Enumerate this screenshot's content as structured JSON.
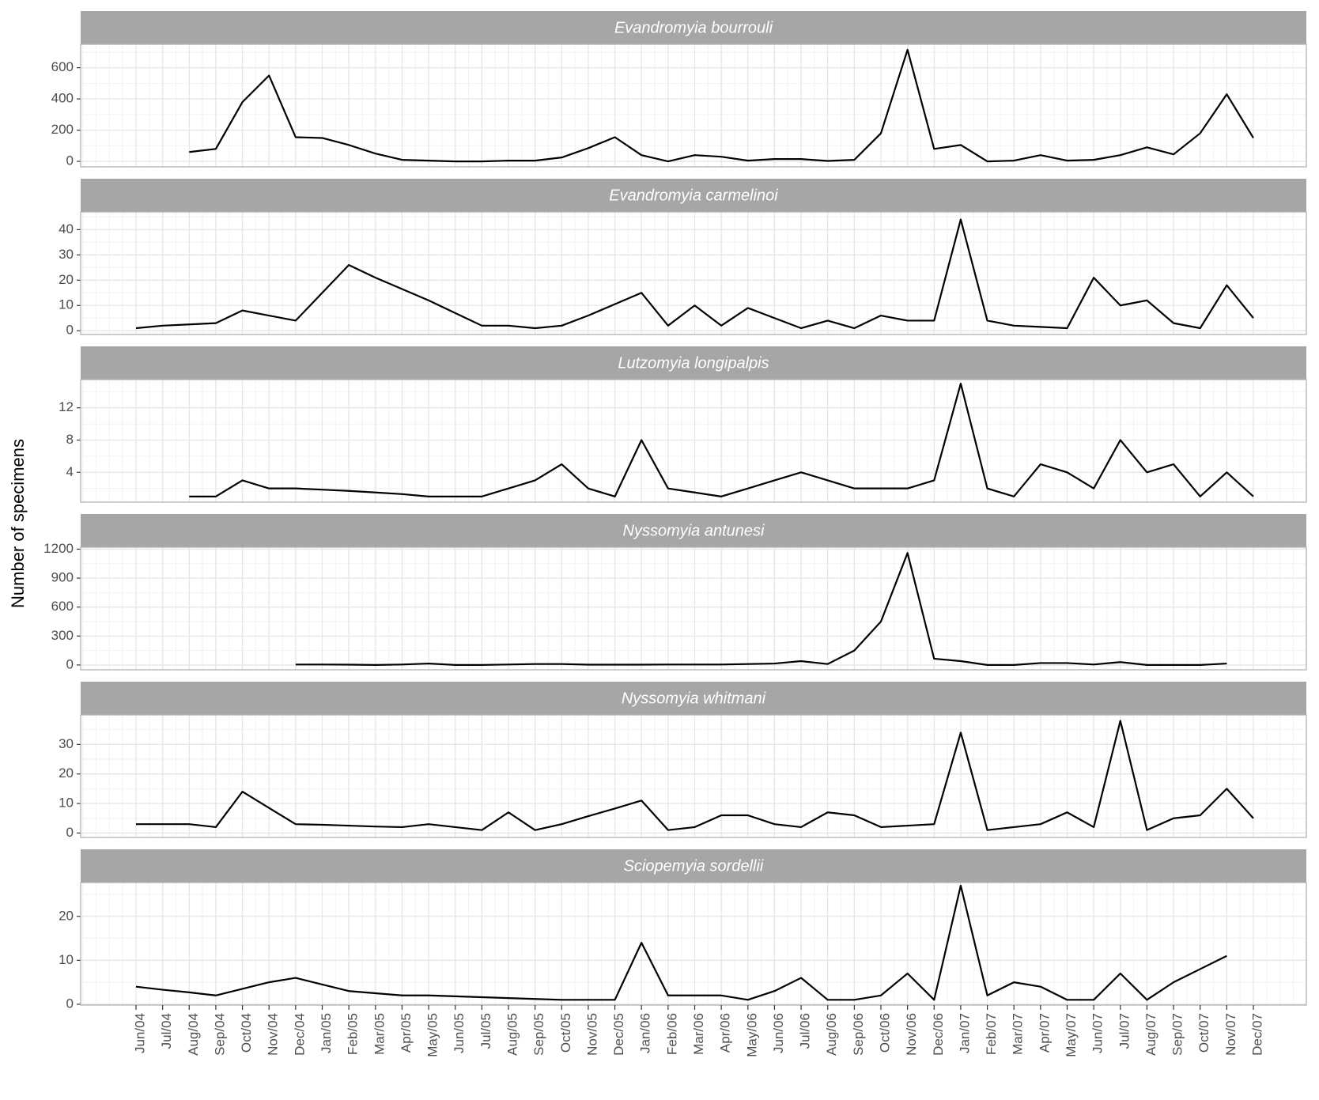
{
  "chart_data": {
    "type": "line",
    "y_label": "Number of specimens",
    "grid": true,
    "color": "#000000",
    "categories": [
      "Jun/04",
      "Jul/04",
      "Aug/04",
      "Sep/04",
      "Oct/04",
      "Nov/04",
      "Dec/04",
      "Jan/05",
      "Feb/05",
      "Mar/05",
      "Apr/05",
      "May/05",
      "Jun/05",
      "Jul/05",
      "Aug/05",
      "Sep/05",
      "Oct/05",
      "Nov/05",
      "Dec/05",
      "Jan/06",
      "Feb/06",
      "Mar/06",
      "Apr/06",
      "May/06",
      "Jun/06",
      "Jul/06",
      "Aug/06",
      "Sep/06",
      "Oct/06",
      "Nov/06",
      "Dec/06",
      "Jan/07",
      "Feb/07",
      "Mar/07",
      "Apr/07",
      "May/07",
      "Jun/07",
      "Jul/07",
      "Aug/07",
      "Sep/07",
      "Oct/07",
      "Nov/07",
      "Dec/07"
    ],
    "panels": [
      {
        "title": "Evandromyia bourrouli",
        "ylim": [
          -35,
          750
        ],
        "yticks": [
          0,
          200,
          400,
          600
        ],
        "values": [
          null,
          null,
          60,
          80,
          380,
          550,
          155,
          150,
          105,
          50,
          10,
          5,
          0,
          0,
          5,
          5,
          25,
          85,
          155,
          40,
          0,
          40,
          30,
          5,
          15,
          15,
          3,
          10,
          180,
          715,
          80,
          105,
          0,
          5,
          40,
          5,
          10,
          40,
          90,
          45,
          180,
          430,
          150
        ]
      },
      {
        "title": "Evandromyia carmelinoi",
        "ylim": [
          -1.5,
          47
        ],
        "yticks": [
          0,
          10,
          20,
          30,
          40
        ],
        "values": [
          1,
          2,
          2.5,
          3,
          8,
          6,
          4,
          15,
          26,
          21,
          16.5,
          12,
          7,
          2,
          2,
          1,
          2,
          6,
          10.5,
          15,
          2,
          10,
          2,
          9,
          5,
          1,
          4,
          1,
          6,
          4,
          4,
          44,
          4,
          2,
          1.5,
          1,
          21,
          10,
          12,
          3,
          1,
          18,
          5
        ]
      },
      {
        "title": "Lutzomyia longipalpis",
        "ylim": [
          0.3,
          15.5
        ],
        "yticks": [
          4,
          8,
          12
        ],
        "values": [
          null,
          null,
          1,
          1,
          3,
          2,
          2,
          1.85,
          1.7,
          1.5,
          1.3,
          1,
          1,
          1,
          2,
          3,
          5,
          2,
          1,
          8,
          2,
          1.5,
          1,
          2,
          3,
          4,
          3,
          2,
          2,
          2,
          3,
          15,
          2,
          1,
          5,
          4,
          2,
          8,
          4,
          5,
          1,
          4,
          1
        ]
      },
      {
        "title": "Nyssomyia antunesi",
        "ylim": [
          -50,
          1220
        ],
        "yticks": [
          0,
          300,
          600,
          900,
          1200
        ],
        "values": [
          null,
          null,
          null,
          null,
          null,
          null,
          5,
          5,
          3,
          0,
          5,
          15,
          0,
          0,
          5,
          10,
          10,
          3,
          3,
          3,
          5,
          5,
          5,
          10,
          15,
          40,
          10,
          150,
          450,
          1160,
          65,
          40,
          0,
          0,
          20,
          20,
          5,
          30,
          0,
          0,
          0,
          15,
          null
        ]
      },
      {
        "title": "Nyssomyia whitmani",
        "ylim": [
          -1.5,
          40
        ],
        "yticks": [
          0,
          10,
          20,
          30
        ],
        "values": [
          3,
          3,
          3,
          2,
          14,
          8.5,
          3,
          2.8,
          2.5,
          2.2,
          2,
          3,
          2,
          1,
          7,
          1,
          3,
          5.7,
          8.3,
          11,
          1,
          2,
          6,
          6,
          3,
          2,
          7,
          6,
          2,
          2.5,
          3,
          34,
          1,
          2,
          3,
          7,
          2,
          38,
          1,
          5,
          6,
          15,
          5
        ]
      },
      {
        "title": "Sciopemyia sordellii",
        "ylim": [
          -0.2,
          27.7
        ],
        "yticks": [
          0,
          10,
          20
        ],
        "values": [
          4,
          3.3,
          2.7,
          2,
          3.5,
          5,
          6,
          4.5,
          3,
          2.5,
          2,
          2,
          1.8,
          1.6,
          1.4,
          1.2,
          1,
          1,
          1,
          14,
          2,
          2,
          2,
          1,
          3,
          6,
          1,
          1,
          2,
          7,
          1,
          27,
          2,
          5,
          4,
          1,
          1,
          7,
          1,
          5,
          8,
          11,
          null
        ]
      }
    ]
  }
}
